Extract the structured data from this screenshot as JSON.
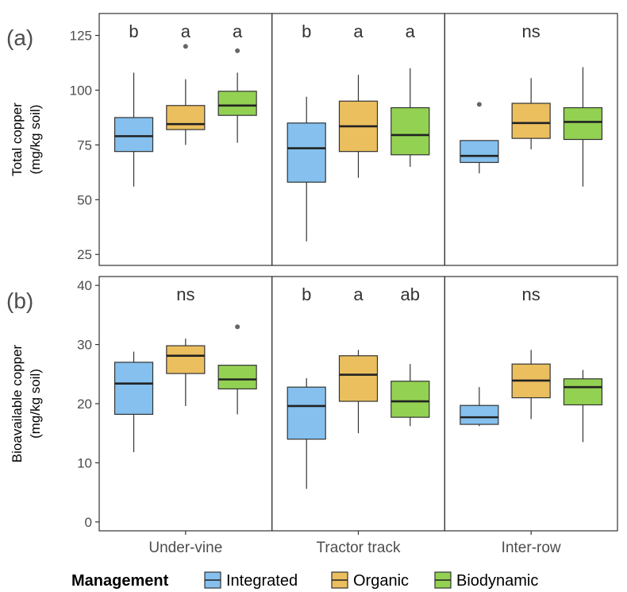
{
  "legend": {
    "title": "Management",
    "items": [
      {
        "label": "Integrated",
        "color": "#85c0ee"
      },
      {
        "label": "Organic",
        "color": "#ebbf5e"
      },
      {
        "label": "Biodynamic",
        "color": "#93d153"
      }
    ]
  },
  "chart_data": {
    "type": "boxplot",
    "facets": [
      "Under-vine",
      "Tractor track",
      "Inter-row"
    ],
    "series_names": [
      "Integrated",
      "Organic",
      "Biodynamic"
    ],
    "colors": {
      "Integrated": "#85c0ee",
      "Organic": "#ebbf5e",
      "Biodynamic": "#93d153"
    },
    "panels": [
      {
        "label": "(a)",
        "ylabel_line1": "Total copper",
        "ylabel_line2": "(mg/kg soil)",
        "ylim": [
          20,
          135
        ],
        "yticks": [
          25,
          50,
          75,
          100,
          125
        ],
        "significance": [
          [
            "b",
            "a",
            "a"
          ],
          [
            "b",
            "a",
            "a"
          ],
          [
            "ns"
          ]
        ],
        "boxes": [
          [
            {
              "series": "Integrated",
              "whisker_low": 56,
              "q1": 72,
              "median": 79,
              "q3": 87.5,
              "whisker_high": 108,
              "outliers": []
            },
            {
              "series": "Organic",
              "whisker_low": 75,
              "q1": 82,
              "median": 84.5,
              "q3": 93,
              "whisker_high": 105,
              "outliers": [
                120
              ]
            },
            {
              "series": "Biodynamic",
              "whisker_low": 76,
              "q1": 88.5,
              "median": 93,
              "q3": 99.5,
              "whisker_high": 108,
              "outliers": [
                118
              ]
            }
          ],
          [
            {
              "series": "Integrated",
              "whisker_low": 31,
              "q1": 58,
              "median": 73.5,
              "q3": 85,
              "whisker_high": 97,
              "outliers": []
            },
            {
              "series": "Organic",
              "whisker_low": 60,
              "q1": 72,
              "median": 83.5,
              "q3": 95,
              "whisker_high": 107,
              "outliers": []
            },
            {
              "series": "Biodynamic",
              "whisker_low": 65,
              "q1": 70.5,
              "median": 79.5,
              "q3": 92,
              "whisker_high": 110,
              "outliers": []
            }
          ],
          [
            {
              "series": "Integrated",
              "whisker_low": 62,
              "q1": 67,
              "median": 70,
              "q3": 77,
              "whisker_high": 77,
              "outliers": [
                93.5
              ]
            },
            {
              "series": "Organic",
              "whisker_low": 73,
              "q1": 78,
              "median": 85,
              "q3": 94,
              "whisker_high": 105.5,
              "outliers": []
            },
            {
              "series": "Biodynamic",
              "whisker_low": 56,
              "q1": 77.5,
              "median": 85.5,
              "q3": 92,
              "whisker_high": 110.5,
              "outliers": []
            }
          ]
        ]
      },
      {
        "label": "(b)",
        "ylabel_line1": "Bioavailable copper",
        "ylabel_line2": "(mg/kg soil)",
        "ylim": [
          -1.5,
          41.5
        ],
        "yticks": [
          0,
          10,
          20,
          30,
          40
        ],
        "significance": [
          [
            "ns"
          ],
          [
            "b",
            "a",
            "ab"
          ],
          [
            "ns"
          ]
        ],
        "boxes": [
          [
            {
              "series": "Integrated",
              "whisker_low": 11.8,
              "q1": 18.2,
              "median": 23.4,
              "q3": 27,
              "whisker_high": 28.8,
              "outliers": []
            },
            {
              "series": "Organic",
              "whisker_low": 19.6,
              "q1": 25.1,
              "median": 28.1,
              "q3": 29.8,
              "whisker_high": 31,
              "outliers": []
            },
            {
              "series": "Biodynamic",
              "whisker_low": 18.2,
              "q1": 22.5,
              "median": 24.1,
              "q3": 26.5,
              "whisker_high": 26.5,
              "outliers": [
                33
              ]
            }
          ],
          [
            {
              "series": "Integrated",
              "whisker_low": 5.6,
              "q1": 14,
              "median": 19.6,
              "q3": 22.8,
              "whisker_high": 24.3,
              "outliers": []
            },
            {
              "series": "Organic",
              "whisker_low": 15,
              "q1": 20.4,
              "median": 24.9,
              "q3": 28.1,
              "whisker_high": 29.1,
              "outliers": []
            },
            {
              "series": "Biodynamic",
              "whisker_low": 16.2,
              "q1": 17.7,
              "median": 20.4,
              "q3": 23.8,
              "whisker_high": 26.7,
              "outliers": []
            }
          ],
          [
            {
              "series": "Integrated",
              "whisker_low": 16.2,
              "q1": 16.5,
              "median": 17.7,
              "q3": 19.7,
              "whisker_high": 22.8,
              "outliers": []
            },
            {
              "series": "Organic",
              "whisker_low": 17.4,
              "q1": 21,
              "median": 23.9,
              "q3": 26.7,
              "whisker_high": 29.1,
              "outliers": []
            },
            {
              "series": "Biodynamic",
              "whisker_low": 13.5,
              "q1": 19.8,
              "median": 22.8,
              "q3": 24.2,
              "whisker_high": 25.7,
              "outliers": []
            }
          ]
        ]
      }
    ]
  }
}
